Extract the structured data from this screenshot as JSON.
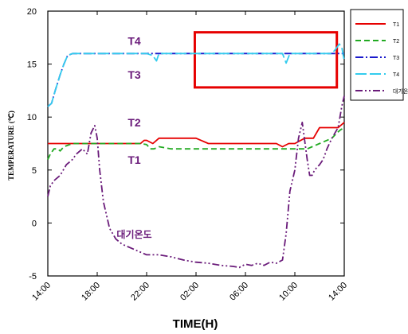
{
  "chart_data": {
    "type": "line",
    "xlabel": "TIME(H)",
    "ylabel": "TEMPERATURE (℃)",
    "ylim": [
      -5,
      20
    ],
    "yticks": [
      -5,
      0,
      5,
      10,
      15,
      20
    ],
    "xlim": [
      14,
      38
    ],
    "xtick_values": [
      14,
      18,
      22,
      26,
      30,
      34,
      38
    ],
    "xtick_labels": [
      "14:00",
      "18:00",
      "22:00",
      "02:00",
      "06:00",
      "10:00",
      "14:00"
    ],
    "grid": false,
    "legend_position": "top-right outside",
    "series": [
      {
        "name": "T1",
        "color": "#e60000",
        "dash": "solid",
        "x": [
          14,
          14.2,
          14.6,
          15,
          16,
          17,
          18,
          20,
          21.5,
          21.8,
          22,
          22.5,
          23,
          24,
          25,
          26,
          27,
          28,
          29,
          30,
          31,
          32,
          32.5,
          33,
          33.5,
          34,
          34.8,
          35,
          35.5,
          36,
          37,
          37.5,
          38
        ],
        "y": [
          7.5,
          7.5,
          7.5,
          7.5,
          7.5,
          7.5,
          7.5,
          7.5,
          7.5,
          7.8,
          7.8,
          7.5,
          8,
          8,
          8,
          8,
          7.5,
          7.5,
          7.5,
          7.5,
          7.5,
          7.5,
          7.5,
          7.2,
          7.5,
          7.5,
          8,
          8,
          8,
          9,
          9,
          9,
          9.5
        ]
      },
      {
        "name": "T2",
        "color": "#22aa22",
        "dash": "dashed",
        "x": [
          14,
          14.2,
          14.5,
          14.8,
          15,
          15.3,
          16,
          17,
          18,
          20,
          21.5,
          22,
          22.3,
          22.6,
          23,
          24,
          25,
          26,
          28,
          30,
          32,
          34,
          35,
          36,
          37,
          37.4,
          37.7,
          38
        ],
        "y": [
          6,
          6.5,
          7,
          7,
          6.8,
          7.2,
          7.5,
          7.5,
          7.5,
          7.5,
          7.5,
          7.4,
          7,
          7,
          7.2,
          7,
          7,
          7,
          7,
          7,
          7,
          7,
          7,
          7.5,
          8,
          8.5,
          8.8,
          9
        ]
      },
      {
        "name": "T3",
        "color": "#1a1acc",
        "dash": "dashdot",
        "x": [
          14,
          14.3,
          14.6,
          15,
          15.3,
          15.6,
          16,
          16.5,
          18,
          20,
          22,
          24,
          26,
          28,
          30,
          32,
          34,
          36,
          38
        ],
        "y": [
          11,
          11.3,
          12.5,
          14,
          15,
          15.8,
          16,
          16,
          16,
          16,
          16,
          16,
          16,
          16,
          16,
          16,
          16,
          16,
          16
        ]
      },
      {
        "name": "T4",
        "color": "#33ccee",
        "dash": "longdash",
        "x": [
          14,
          14.3,
          14.6,
          15,
          15.3,
          15.6,
          16,
          16.5,
          18,
          20,
          22,
          22.5,
          22.8,
          23,
          24,
          26,
          28,
          30,
          32,
          33,
          33.3,
          33.6,
          34,
          36,
          37,
          37.3,
          37.6,
          37.8,
          38
        ],
        "y": [
          11,
          11.3,
          12.5,
          14,
          15,
          15.8,
          16,
          16,
          16,
          16,
          16,
          15.8,
          15.3,
          16,
          16,
          16,
          16,
          16,
          16,
          16,
          15.1,
          16,
          16,
          16,
          16,
          16.4,
          16.9,
          16.6,
          15.3
        ]
      },
      {
        "name": "대기온도",
        "color": "#6a1b7a",
        "dash": "dashdotdot",
        "x": [
          14,
          14.2,
          14.5,
          15,
          15.5,
          16,
          16.3,
          16.8,
          17.2,
          17.5,
          17.8,
          18,
          18.2,
          18.5,
          18.8,
          19,
          19.5,
          20,
          21,
          22,
          23,
          24,
          25,
          26,
          27,
          28,
          29,
          29.5,
          30,
          30.5,
          31,
          31.5,
          32,
          32.5,
          33,
          33.3,
          33.6,
          34,
          34.3,
          34.6,
          35,
          35.2,
          35.4,
          35.6,
          36,
          36.3,
          36.6,
          37,
          37.5,
          37.8,
          38
        ],
        "y": [
          2.5,
          3.5,
          4,
          4.5,
          5.5,
          6,
          6.5,
          7,
          6.5,
          8.5,
          9.2,
          8,
          5,
          2,
          0.5,
          -0.5,
          -1.5,
          -2,
          -2.5,
          -3,
          -3,
          -3.2,
          -3.5,
          -3.7,
          -3.8,
          -4,
          -4.1,
          -4.2,
          -3.9,
          -4,
          -3.8,
          -4,
          -3.7,
          -3.8,
          -3.5,
          -1,
          3,
          5,
          8,
          9.5,
          6,
          4.5,
          4.5,
          5,
          5.5,
          6,
          7,
          8,
          9,
          11,
          12
        ]
      }
    ],
    "annotations": [
      {
        "text": "T4",
        "x": 21,
        "y": 16.8,
        "color": "#6a1b7a"
      },
      {
        "text": "T3",
        "x": 21,
        "y": 13.6,
        "color": "#6a1b7a"
      },
      {
        "text": "T2",
        "x": 21,
        "y": 9.1,
        "color": "#6a1b7a"
      },
      {
        "text": "T1",
        "x": 21,
        "y": 5.6,
        "color": "#6a1b7a"
      },
      {
        "text": "대기온도",
        "x": 21,
        "y": -1.4,
        "color": "#6a1b7a"
      }
    ],
    "highlight_box": {
      "x": [
        25.9,
        37.4
      ],
      "y": [
        12.8,
        18
      ],
      "color": "#e60000"
    }
  }
}
